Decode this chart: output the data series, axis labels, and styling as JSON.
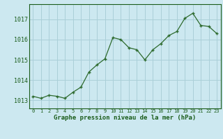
{
  "x": [
    0,
    1,
    2,
    3,
    4,
    5,
    6,
    7,
    8,
    9,
    10,
    11,
    12,
    13,
    14,
    15,
    16,
    17,
    18,
    19,
    20,
    21,
    22,
    23
  ],
  "y": [
    1013.2,
    1013.1,
    1013.25,
    1013.2,
    1013.1,
    1013.4,
    1013.65,
    1014.4,
    1014.75,
    1015.05,
    1016.1,
    1016.0,
    1015.6,
    1015.5,
    1015.0,
    1015.5,
    1015.8,
    1016.2,
    1016.4,
    1017.05,
    1017.3,
    1016.7,
    1016.65,
    1016.3
  ],
  "line_color": "#2d6a2d",
  "marker_color": "#2d6a2d",
  "bg_color": "#cce8f0",
  "grid_color": "#aacfd8",
  "label_color": "#1a5c1a",
  "xlabel": "Graphe pression niveau de la mer (hPa)",
  "ylim_min": 1012.6,
  "ylim_max": 1017.75,
  "yticks": [
    1013,
    1014,
    1015,
    1016,
    1017
  ],
  "xticks": [
    0,
    1,
    2,
    3,
    4,
    5,
    6,
    7,
    8,
    9,
    10,
    11,
    12,
    13,
    14,
    15,
    16,
    17,
    18,
    19,
    20,
    21,
    22,
    23
  ]
}
